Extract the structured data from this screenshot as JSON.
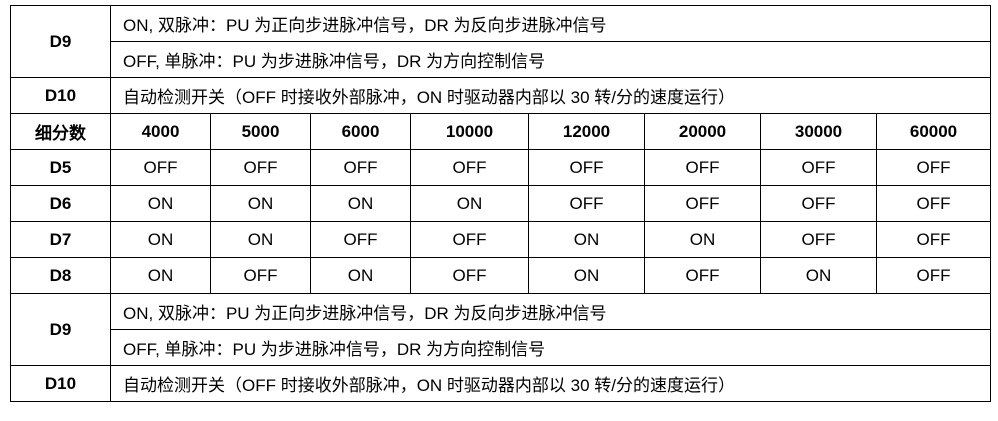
{
  "top": {
    "d9_label": "D9",
    "d9_on": "ON, 双脉冲：PU 为正向步进脉冲信号，DR 为反向步进脉冲信号",
    "d9_off": "OFF, 单脉冲：PU 为步进脉冲信号，DR 为方向控制信号",
    "d10_label": "D10",
    "d10_text": "自动检测开关（OFF 时接收外部脉冲，ON 时驱动器内部以 30 转/分的速度运行）"
  },
  "header": {
    "label": "细分数",
    "values": [
      "4000",
      "5000",
      "6000",
      "10000",
      "12000",
      "20000",
      "30000",
      "60000"
    ]
  },
  "rows": [
    {
      "label": "D5",
      "values": [
        "OFF",
        "OFF",
        "OFF",
        "OFF",
        "OFF",
        "OFF",
        "OFF",
        "OFF"
      ]
    },
    {
      "label": "D6",
      "values": [
        "ON",
        "ON",
        "ON",
        "ON",
        "OFF",
        "OFF",
        "OFF",
        "OFF"
      ]
    },
    {
      "label": "D7",
      "values": [
        "ON",
        "ON",
        "OFF",
        "OFF",
        "ON",
        "ON",
        "OFF",
        "OFF"
      ]
    },
    {
      "label": "D8",
      "values": [
        "ON",
        "OFF",
        "ON",
        "OFF",
        "ON",
        "OFF",
        "ON",
        "OFF"
      ]
    }
  ],
  "bottom": {
    "d9_label": "D9",
    "d9_on": "ON, 双脉冲：PU 为正向步进脉冲信号，DR 为反向步进脉冲信号",
    "d9_off": "OFF, 单脉冲：PU 为步进脉冲信号，DR 为方向控制信号",
    "d10_label": "D10",
    "d10_text": "自动检测开关（OFF 时接收外部脉冲，ON 时驱动器内部以 30 转/分的速度运行）"
  }
}
